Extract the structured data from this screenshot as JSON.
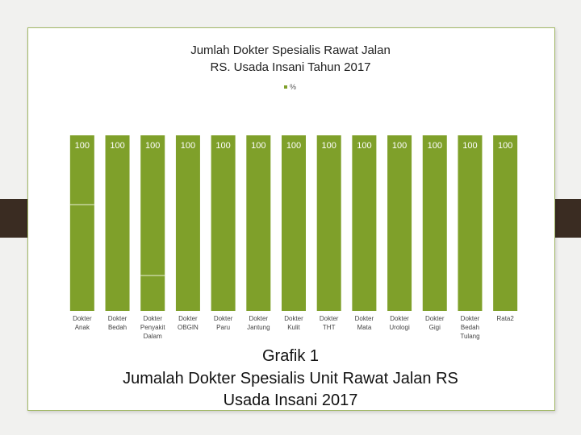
{
  "chart_data": {
    "type": "bar",
    "title_line1": "Jumlah Dokter Spesialis Rawat Jalan",
    "title_line2": "RS. Usada Insani Tahun 2017",
    "legend": [
      "%"
    ],
    "categories": [
      [
        "Dokter",
        "Anak"
      ],
      [
        "Dokter",
        "Bedah"
      ],
      [
        "Dokter",
        "Penyakit",
        "Dalam"
      ],
      [
        "Dokter",
        "OBGIN"
      ],
      [
        "Dokter",
        "Paru"
      ],
      [
        "Dokter",
        "Jantung"
      ],
      [
        "Dokter",
        "Kulit"
      ],
      [
        "Dokter",
        "THT"
      ],
      [
        "Dokter",
        "Mata"
      ],
      [
        "Dokter",
        "Urologi"
      ],
      [
        "Dokter",
        "Gigi"
      ],
      [
        "Dokter",
        "Bedah",
        "Tulang"
      ],
      [
        "Rata2"
      ]
    ],
    "series": [
      {
        "name": "%",
        "values": [
          100,
          100,
          100,
          100,
          100,
          100,
          100,
          100,
          100,
          100,
          100,
          100,
          100
        ]
      }
    ],
    "data_labels": [
      "100",
      "100",
      "100",
      "100",
      "100",
      "100",
      "100",
      "100",
      "100",
      "100",
      "100",
      "100",
      "100"
    ],
    "ylim": [
      0,
      100
    ],
    "grid": false,
    "legend_position": "top",
    "colors": {
      "bar": "#7fa02a",
      "bar_split": "#e8efd6"
    }
  },
  "caption": {
    "line1": "Grafik 1",
    "line2": "Jumalah Dokter Spesialis Unit Rawat Jalan RS",
    "line3": "Usada Insani 2017"
  }
}
